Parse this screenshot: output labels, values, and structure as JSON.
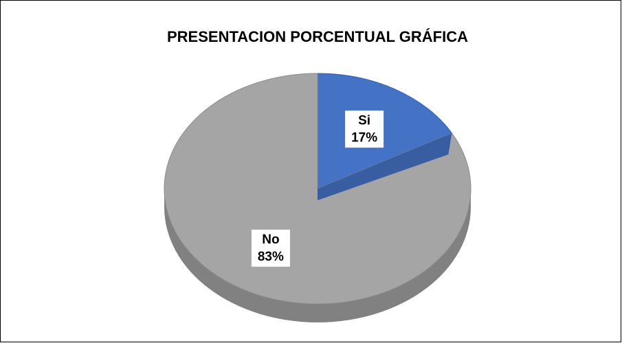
{
  "chart_data": {
    "type": "pie",
    "title": "PRESENTACION PORCENTUAL GRÁFICA",
    "categories": [
      "Si",
      "No"
    ],
    "values": [
      17,
      83
    ],
    "value_labels": [
      "17%",
      "83%"
    ],
    "colors": [
      "#4472c4",
      "#a5a5a5"
    ]
  }
}
